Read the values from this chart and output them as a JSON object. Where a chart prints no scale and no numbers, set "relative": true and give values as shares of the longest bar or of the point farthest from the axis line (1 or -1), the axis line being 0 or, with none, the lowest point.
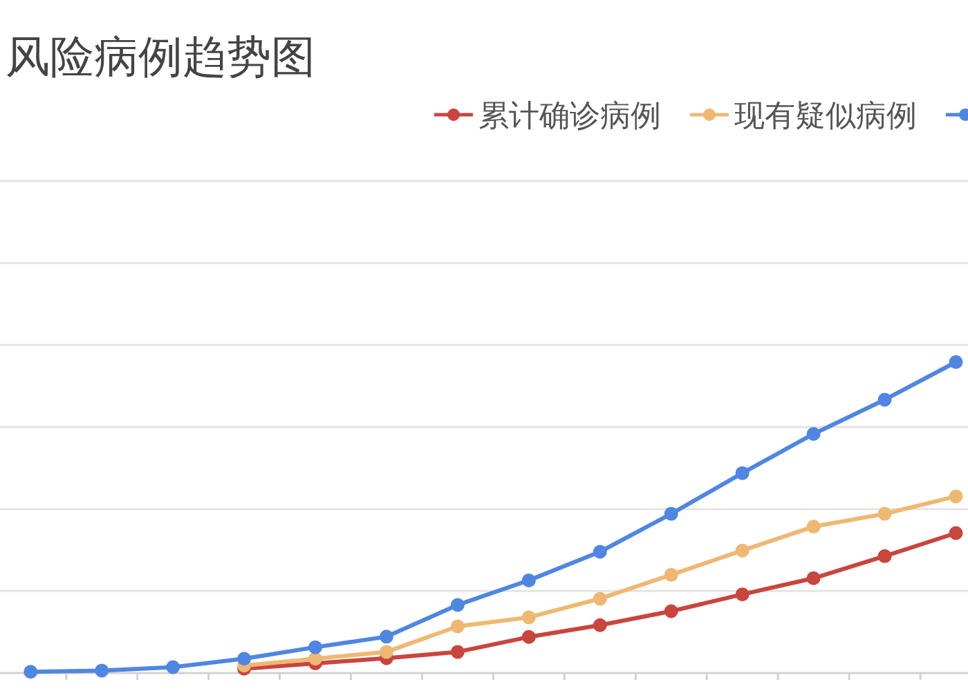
{
  "chart_data": {
    "type": "line",
    "title": "风险病例趋势图",
    "relative": true,
    "categories": [
      null,
      null,
      null,
      null,
      null,
      null,
      null,
      null,
      null,
      null,
      null,
      null,
      null,
      null
    ],
    "series": [
      {
        "name": "累计确诊病例",
        "color": "#c9453e",
        "values": [
          null,
          null,
          null,
          0.014,
          0.031,
          0.048,
          0.068,
          0.116,
          0.154,
          0.199,
          0.253,
          0.305,
          0.376,
          0.45
        ]
      },
      {
        "name": "现有疑似病例",
        "color": "#efb872",
        "values": [
          null,
          null,
          null,
          0.024,
          0.046,
          0.068,
          0.15,
          0.179,
          0.239,
          0.316,
          0.394,
          0.471,
          0.512,
          0.568
        ]
      },
      {
        "color": "#4f86e3",
        "values": [
          0.004,
          0.008,
          0.019,
          0.046,
          0.083,
          0.117,
          0.219,
          0.298,
          0.39,
          0.512,
          0.643,
          0.769,
          0.879,
          1
        ]
      }
    ],
    "grid": "y",
    "legend": "top right",
    "marker": "circle",
    "line_style": "solid"
  }
}
